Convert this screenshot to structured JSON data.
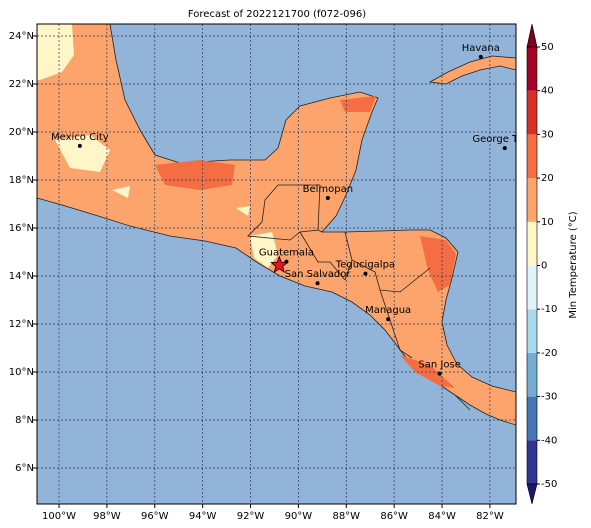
{
  "title": "Forecast of 2022121700 (f072-096)",
  "map": {
    "xlim": [
      -100.92,
      -80.91
    ],
    "ylim": [
      4.5,
      24.5
    ],
    "xticks": [
      {
        "value": -100,
        "label": "100°W"
      },
      {
        "value": -98,
        "label": "98°W"
      },
      {
        "value": -96,
        "label": "96°W"
      },
      {
        "value": -94,
        "label": "94°W"
      },
      {
        "value": -92,
        "label": "92°W"
      },
      {
        "value": -90,
        "label": "90°W"
      },
      {
        "value": -88,
        "label": "88°W"
      },
      {
        "value": -86,
        "label": "86°W"
      },
      {
        "value": -84,
        "label": "84°W"
      },
      {
        "value": -82,
        "label": "82°W"
      }
    ],
    "yticks": [
      {
        "value": 6,
        "label": "6°N"
      },
      {
        "value": 8,
        "label": "8°N"
      },
      {
        "value": 10,
        "label": "10°N"
      },
      {
        "value": 12,
        "label": "12°N"
      },
      {
        "value": 14,
        "label": "14°N"
      },
      {
        "value": 16,
        "label": "16°N"
      },
      {
        "value": 18,
        "label": "18°N"
      },
      {
        "value": 20,
        "label": "20°N"
      },
      {
        "value": 22,
        "label": "22°N"
      },
      {
        "value": 24,
        "label": "24°N"
      }
    ],
    "grid": true,
    "cities": [
      {
        "name": "Havana",
        "lon": -82.38,
        "lat": 23.13
      },
      {
        "name": "George Town",
        "lon": -81.38,
        "lat": 19.33
      },
      {
        "name": "Mexico City",
        "lon": -99.13,
        "lat": 19.42
      },
      {
        "name": "Belmopan",
        "lon": -88.77,
        "lat": 17.25
      },
      {
        "name": "Guatemala",
        "lon": -90.5,
        "lat": 14.6
      },
      {
        "name": "San Salvador",
        "lon": -89.2,
        "lat": 13.7
      },
      {
        "name": "Tegucigalpa",
        "lon": -87.2,
        "lat": 14.1
      },
      {
        "name": "Managua",
        "lon": -86.25,
        "lat": 12.2
      },
      {
        "name": "San Jose",
        "lon": -84.1,
        "lat": 9.93
      }
    ],
    "marker": {
      "lon": -90.8,
      "lat": 14.45,
      "color": "#e8141c"
    }
  },
  "colorbar": {
    "label": "Min Temperature (°C)",
    "ticks": [
      -50,
      -40,
      -30,
      -20,
      -10,
      0,
      10,
      20,
      30,
      40,
      50
    ],
    "colors": [
      "#313695",
      "#4575b4",
      "#74add1",
      "#abd9e9",
      "#e0f3f8",
      "#fff6c8",
      "#fca46c",
      "#f46d43",
      "#d73027",
      "#a50026"
    ],
    "under_color": "#1c1a6e",
    "over_color": "#7f0020"
  }
}
